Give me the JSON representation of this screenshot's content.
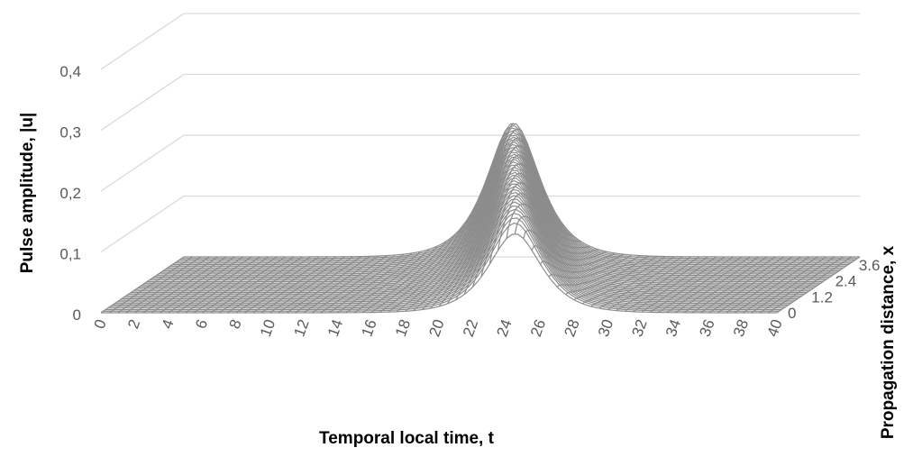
{
  "chart_data": {
    "type": "surface",
    "title": "",
    "xlabel": "Temporal local time, t",
    "ylabel": "Propagation distance, x",
    "zlabel": "Pulse amplitude, |u|",
    "x_ticks": [
      "0",
      "2",
      "4",
      "6",
      "8",
      "10",
      "12",
      "14",
      "16",
      "18",
      "20",
      "22",
      "24",
      "26",
      "28",
      "30",
      "32",
      "34",
      "36",
      "38",
      "40"
    ],
    "y_ticks": [
      "0",
      "1.2",
      "2.4",
      "3.6"
    ],
    "z_ticks": [
      "0",
      "0,1",
      "0,2",
      "0,3",
      "0,4"
    ],
    "xlim": [
      0,
      40
    ],
    "ylim": [
      0,
      4.2
    ],
    "zlim": [
      0,
      0.4
    ],
    "grid": true,
    "legend": "none",
    "surface_color": "#8c8c8c",
    "series": [
      {
        "description_free": true,
        "values": {
          "pulse_center_t_at_x0": 24.5,
          "pulse_center_t_at_xmax": 19.5,
          "pulse_width": 1.4,
          "peak_amplitude": 0.21,
          "peak_amplitude_at_x0": 0.13,
          "peak_amplitude_at_xmax": 0.22
        }
      }
    ]
  }
}
